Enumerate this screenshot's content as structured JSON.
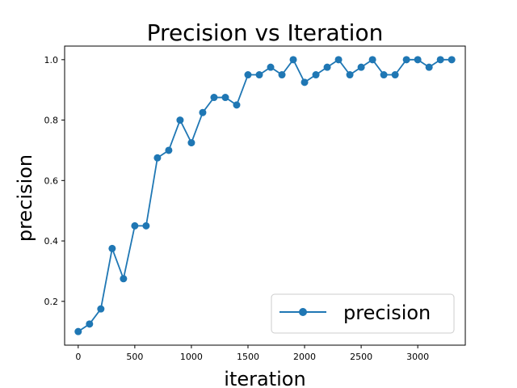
{
  "chart_data": {
    "type": "line",
    "title": "Precision vs Iteration",
    "xlabel": "iteration",
    "ylabel": "precision",
    "xlim": [
      -120,
      3420
    ],
    "ylim": [
      0.055,
      1.045
    ],
    "xticks": [
      0,
      500,
      1000,
      1500,
      2000,
      2500,
      3000
    ],
    "yticks": [
      0.2,
      0.4,
      0.6,
      0.8,
      1.0
    ],
    "xtick_labels": [
      "0",
      "500",
      "1000",
      "1500",
      "2000",
      "2500",
      "3000"
    ],
    "ytick_labels": [
      "0.2",
      "0.4",
      "0.6",
      "0.8",
      "1.0"
    ],
    "grid": false,
    "legend_position": "lower-right",
    "series": [
      {
        "name": "precision",
        "color": "#1f77b4",
        "marker": "circle",
        "x": [
          0,
          100,
          200,
          300,
          400,
          500,
          600,
          700,
          800,
          900,
          1000,
          1100,
          1200,
          1300,
          1400,
          1500,
          1600,
          1700,
          1800,
          1900,
          2000,
          2100,
          2200,
          2300,
          2400,
          2500,
          2600,
          2700,
          2800,
          2900,
          3000,
          3100,
          3200,
          3300
        ],
        "y": [
          0.1,
          0.125,
          0.175,
          0.375,
          0.275,
          0.45,
          0.45,
          0.675,
          0.7,
          0.8,
          0.725,
          0.825,
          0.875,
          0.875,
          0.85,
          0.95,
          0.95,
          0.975,
          0.95,
          1.0,
          0.925,
          0.95,
          0.975,
          1.0,
          0.95,
          0.975,
          1.0,
          0.95,
          0.95,
          1.0,
          1.0,
          0.975,
          1.0,
          1.0
        ]
      }
    ]
  }
}
